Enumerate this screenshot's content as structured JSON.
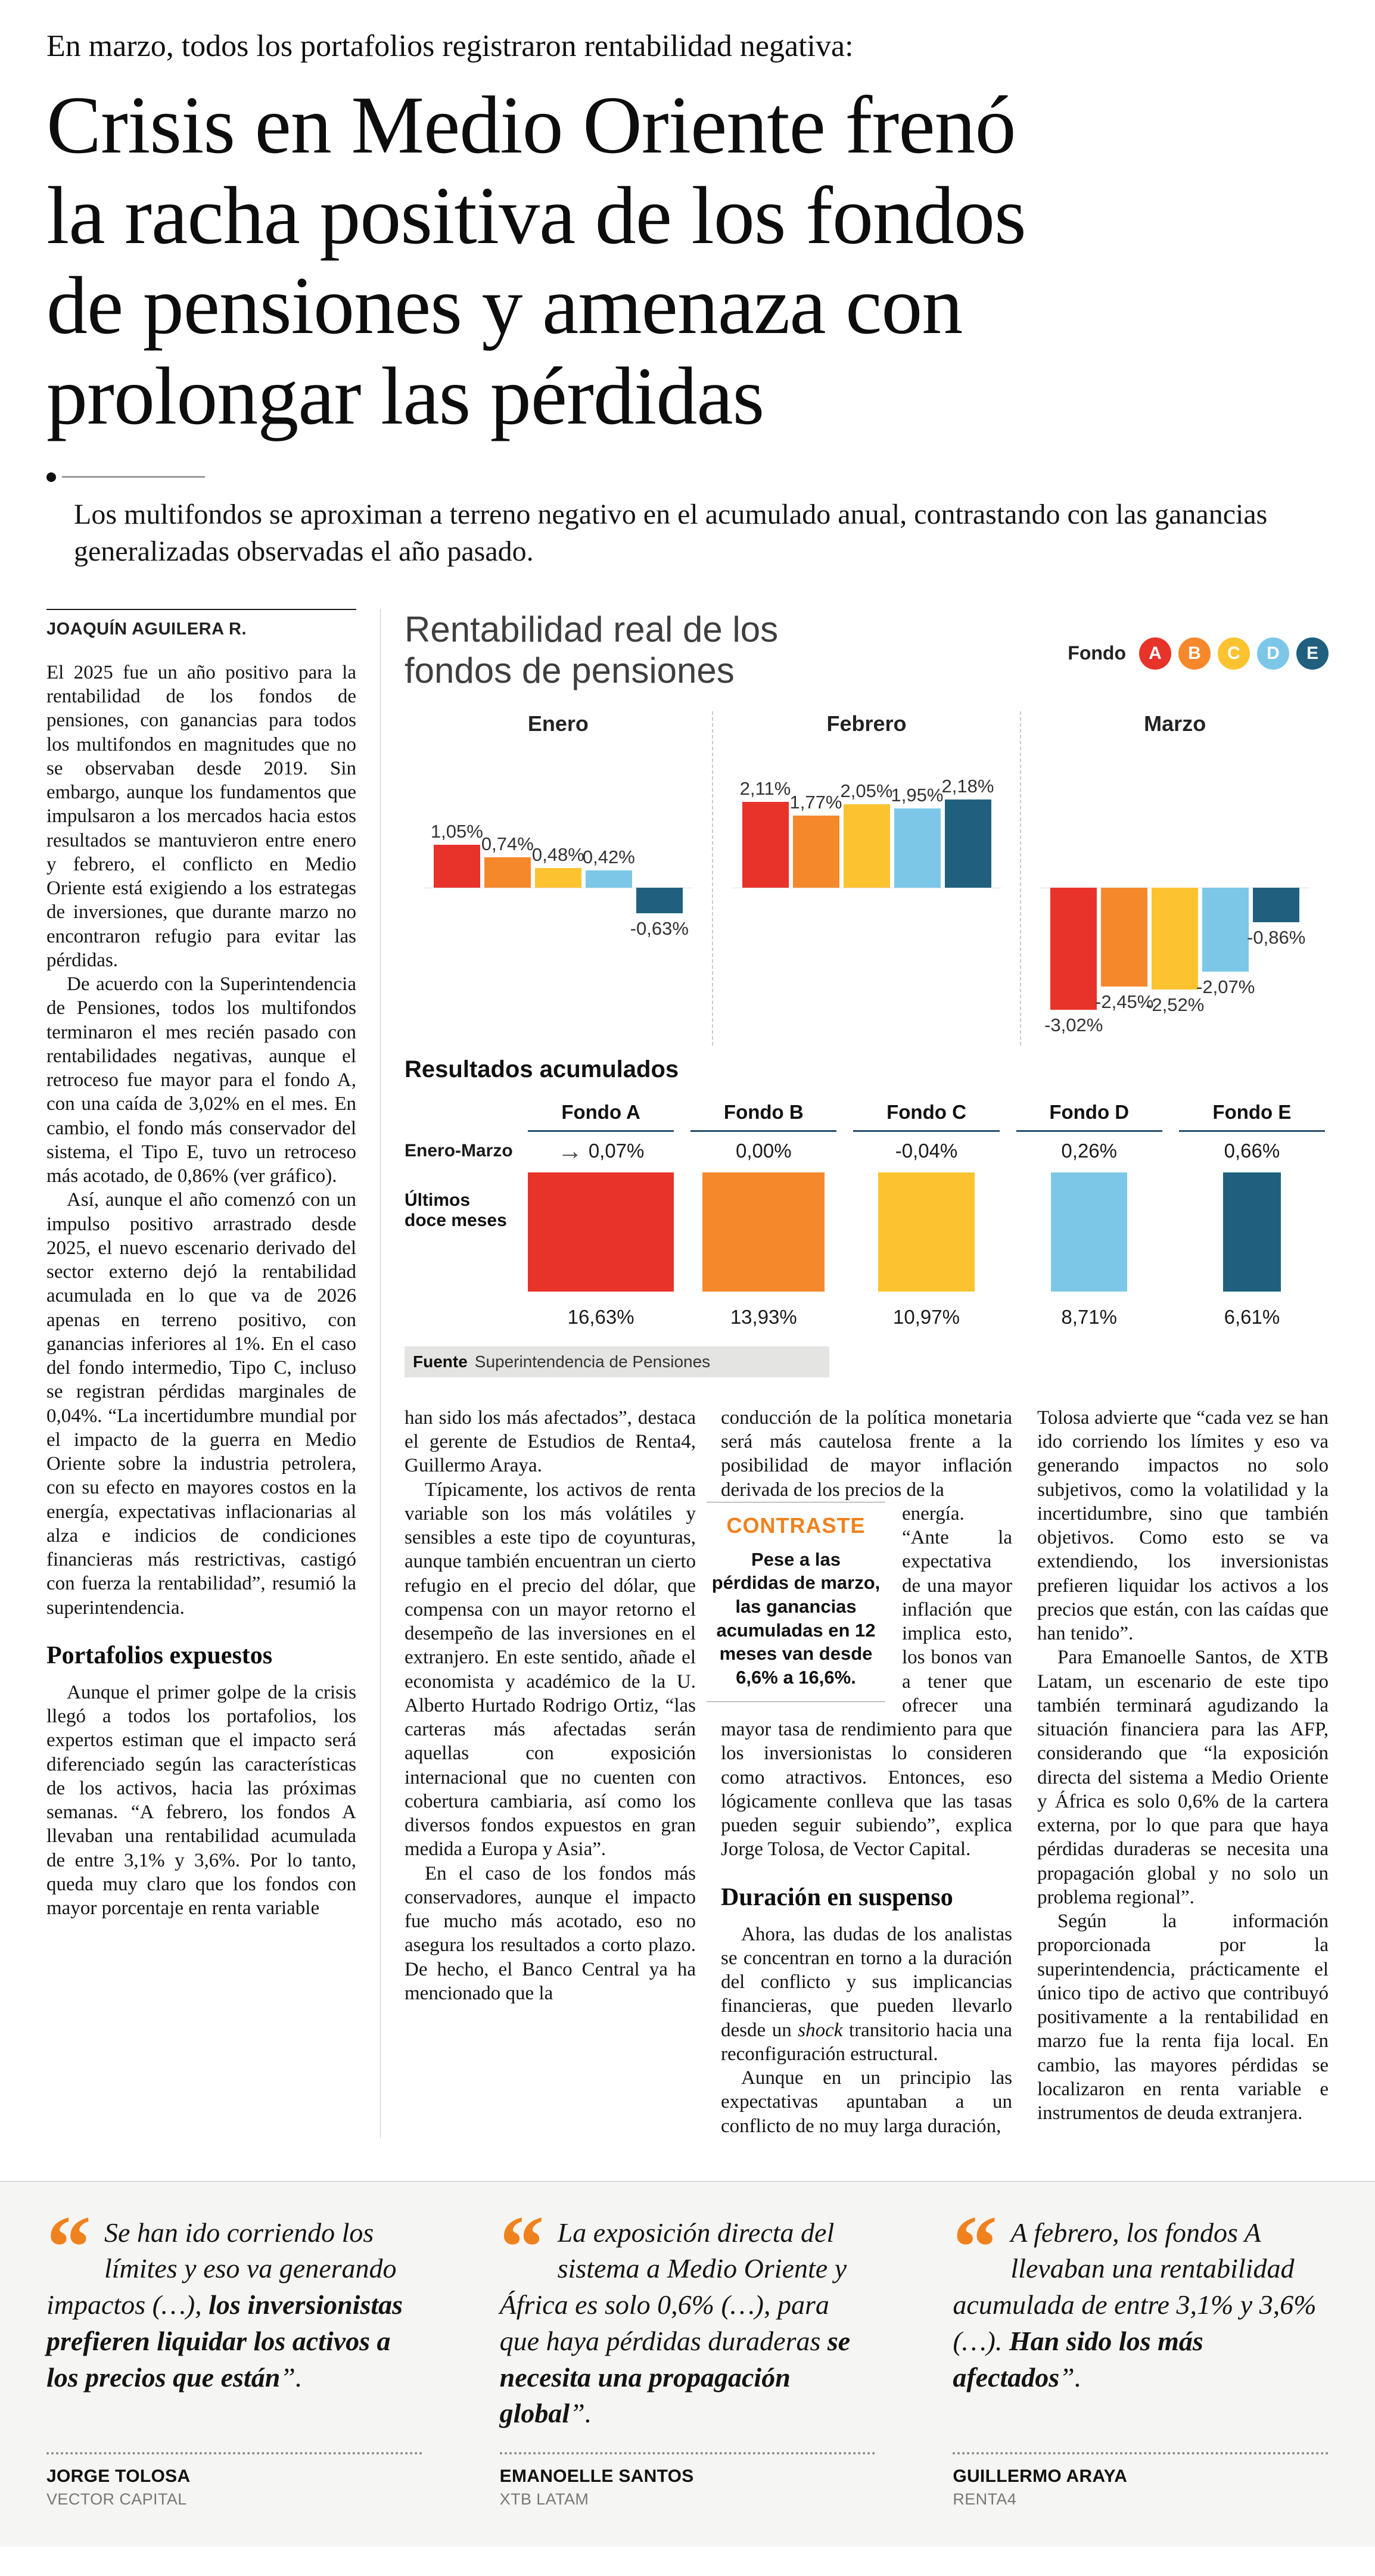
{
  "kicker": "En marzo, todos los portafolios registraron rentabilidad negativa:",
  "headline_lines": [
    "Crisis en Medio Oriente frenó",
    "la racha positiva de los fondos",
    "de pensiones y amenaza con",
    "prolongar las pérdidas"
  ],
  "deck": "Los multifondos se aproximan a terreno negativo en el acumulado anual, contrastando con las ganancias generalizadas observadas el año pasado.",
  "byline": "JOAQUÍN AGUILERA R.",
  "contraste": {
    "label": "CONTRASTE",
    "text": "Pese a las pérdidas de marzo, las ganancias acumuladas en 12 meses van desde 6,6% a 16,6%."
  },
  "article": {
    "columns": [
      {
        "id": "col1",
        "items": [
          {
            "type": "p",
            "indent": false,
            "text": "El 2025 fue un año positivo para la rentabilidad de los fondos de pensiones, con ganancias para todos los multifondos en magnitudes que no se observaban desde 2019. Sin embargo, aunque los fundamentos que impulsaron a los mercados hacia estos resultados se mantuvieron entre enero y febrero, el conflicto en Medio Oriente está exigiendo a los estrategas de inversiones, que durante marzo no encontraron refugio para evitar las pérdidas."
          },
          {
            "type": "p",
            "indent": true,
            "text": "De acuerdo con la Superintendencia de Pensiones, todos los multifondos terminaron el mes recién pasado con rentabilidades negativas, aunque el retroceso fue mayor para el fondo A, con una caída de 3,02% en el mes. En cambio, el fondo más conservador del sistema, el Tipo E, tuvo un retroceso más acotado, de 0,86% (ver gráfico)."
          },
          {
            "type": "p",
            "indent": true,
            "text": "Así, aunque el año comenzó con un impulso positivo arrastrado desde 2025, el nuevo escenario derivado del sector externo dejó la rentabilidad acumulada en lo que va de 2026 apenas en terreno positivo, con ganancias inferiores al 1%. En el caso del fondo intermedio, Tipo C, incluso se registran pérdidas marginales de 0,04%. “La incertidumbre mundial por el impacto de la guerra en Medio Oriente sobre la industria petrolera, con su efecto en mayores costos en la energía, expectativas inflacionarias al alza e indicios de condiciones financieras más restrictivas, castigó con fuerza la rentabilidad”, resumió la superintendencia."
          },
          {
            "type": "h2",
            "text": "Portafolios expuestos"
          },
          {
            "type": "p",
            "indent": true,
            "text": "Aunque el primer golpe de la crisis llegó a todos los portafolios, los expertos estiman que el impacto será diferenciado según las características de los activos, hacia las próximas semanas. “A febrero, los fondos A llevaban una rentabilidad acumulada de entre 3,1% y 3,6%. Por lo tanto, queda muy claro que los fondos con mayor porcentaje en renta variable"
          }
        ]
      },
      {
        "id": "col2",
        "items": [
          {
            "type": "p",
            "indent": false,
            "text": "han sido los más afectados”, destaca el gerente de Estudios de Renta4, Guillermo Araya."
          },
          {
            "type": "p",
            "indent": true,
            "text": "Típicamente, los activos de renta variable son los más volátiles y sensibles a este tipo de coyunturas, aunque también encuentran un cierto refugio en el precio del dólar, que compensa con un mayor retorno el desempeño de las inversiones en el extranjero. En este sentido, añade el economista y académico de la U. Alberto Hurtado Rodrigo Ortiz, “las carteras más afectadas serán aquellas con exposición internacional que no cuenten con cobertura cambiaria, así como los diversos fondos expuestos en gran medida a Europa y Asia”."
          },
          {
            "type": "p",
            "indent": true,
            "text": "En el caso de los fondos más conservadores, aunque el impacto fue mucho más acotado, eso no asegura los resultados a corto plazo. De hecho, el Banco Central ya ha mencionado que la"
          }
        ]
      },
      {
        "id": "col3",
        "items": [
          {
            "type": "p",
            "indent": false,
            "text": "conducción de la política monetaria será más cautelosa frente a la posibilidad de mayor inflación derivada de los precios de la"
          },
          {
            "type": "contraste"
          },
          {
            "type": "p",
            "indent": false,
            "text": "energía. “Ante la expectativa de una mayor inflación que implica esto, los bonos van a tener que ofrecer una mayor tasa de rendimiento para que los inversionistas lo consideren como atractivos. Entonces, eso lógicamente conlleva que las tasas pueden seguir subiendo”, explica Jorge Tolosa, de Vector Capital."
          },
          {
            "type": "h2",
            "text": "Duración en suspenso"
          },
          {
            "type": "p",
            "indent": true,
            "text": [
              {
                "t": "Ahora, las dudas de los analistas se concentran en torno a la duración del conflicto y sus implicancias financieras, que pueden llevarlo desde un "
              },
              {
                "t": "shock",
                "i": true
              },
              {
                "t": " transitorio hacia una reconfiguración estructural."
              }
            ]
          },
          {
            "type": "p",
            "indent": true,
            "text": "Aunque en un principio las expectativas apuntaban a un conflicto de no muy larga duración,"
          }
        ]
      },
      {
        "id": "col4",
        "items": [
          {
            "type": "p",
            "indent": false,
            "text": "Tolosa advierte que “cada vez se han ido corriendo los límites y eso va generando impactos no solo subjetivos, como la volatilidad y la incertidumbre, sino que también objetivos. Como esto se va extendiendo, los inversionistas prefieren liquidar los activos a los precios que están, con las caídas que han tenido”."
          },
          {
            "type": "p",
            "indent": true,
            "text": "Para Emanoelle Santos, de XTB Latam, un escenario de este tipo también terminará agudizando la situación financiera para las AFP, considerando que “la exposición directa del sistema a Medio Oriente y África es solo 0,6% de la cartera externa, por lo que para que haya pérdidas duraderas se necesita una propagación global y no solo un problema regional”."
          },
          {
            "type": "p",
            "indent": true,
            "text": "Según la información proporcionada por la superintendencia, prácticamente el único tipo de activo que contribuyó positivamente a la rentabilidad en marzo fue la renta fija local. En cambio, las mayores pérdidas se localizaron en renta variable e instrumentos de deuda extranjera."
          }
        ]
      }
    ]
  },
  "chart_data": {
    "type": "bar",
    "title": "Rentabilidad real de los fondos de pensiones",
    "legend_label": "Fondo",
    "unit": "%",
    "funds": [
      {
        "id": "A",
        "color": "#e8332a"
      },
      {
        "id": "B",
        "color": "#f6882c"
      },
      {
        "id": "C",
        "color": "#fcc331"
      },
      {
        "id": "D",
        "color": "#7cc7e8"
      },
      {
        "id": "E",
        "color": "#20607e"
      }
    ],
    "monthly": {
      "months": [
        {
          "name": "Enero",
          "values": [
            1.05,
            0.74,
            0.48,
            0.42,
            -0.63
          ],
          "labels": [
            "1,05%",
            "0,74%",
            "0,48%",
            "0,42%",
            "-0,63%"
          ]
        },
        {
          "name": "Febrero",
          "values": [
            2.11,
            1.77,
            2.05,
            1.95,
            2.18
          ],
          "labels": [
            "2,11%",
            "1,77%",
            "2,05%",
            "1,95%",
            "2,18%"
          ]
        },
        {
          "name": "Marzo",
          "values": [
            -3.02,
            -2.45,
            -2.52,
            -2.07,
            -0.86
          ],
          "labels": [
            "-3,02%",
            "-2,45%",
            "-2,52%",
            "-2,07%",
            "-0,86%"
          ]
        }
      ]
    },
    "accumulated": {
      "header": "Resultados acumulados",
      "row_labels": {
        "first": "Enero-Marzo",
        "second": "Últimos doce meses"
      },
      "max_value": 16.63,
      "funds": [
        {
          "name": "Fondo A",
          "enero_marzo": "0,07%",
          "doce_meses": "16,63%",
          "doce_meses_value": 16.63
        },
        {
          "name": "Fondo B",
          "enero_marzo": "0,00%",
          "doce_meses": "13,93%",
          "doce_meses_value": 13.93
        },
        {
          "name": "Fondo C",
          "enero_marzo": "-0,04%",
          "doce_meses": "10,97%",
          "doce_meses_value": 10.97
        },
        {
          "name": "Fondo D",
          "enero_marzo": "0,26%",
          "doce_meses": "8,71%",
          "doce_meses_value": 8.71
        },
        {
          "name": "Fondo E",
          "enero_marzo": "0,66%",
          "doce_meses": "6,61%",
          "doce_meses_value": 6.61
        }
      ]
    },
    "source": {
      "label": "Fuente",
      "text": "Superintendencia de Pensiones"
    }
  },
  "quotes": [
    {
      "segments": [
        {
          "t": "Se han ido corriendo los límites y eso va generando impactos (…), "
        },
        {
          "t": "los inversionistas prefieren liquidar los activos a los precios que están",
          "b": true
        },
        {
          "t": "”."
        }
      ],
      "name": "JORGE TOLOSA",
      "org": "VECTOR CAPITAL"
    },
    {
      "segments": [
        {
          "t": "La exposición directa del sistema a Medio Oriente y África es solo 0,6% (…), para que haya pérdidas duraderas "
        },
        {
          "t": "se necesita una propagación global",
          "b": true
        },
        {
          "t": "”."
        }
      ],
      "name": "EMANOELLE SANTOS",
      "org": "XTB LATAM"
    },
    {
      "segments": [
        {
          "t": "A febrero, los fondos A llevaban una rentabilidad acumulada de entre 3,1% y 3,6% (…). "
        },
        {
          "t": "Han sido los más afectados",
          "b": true
        },
        {
          "t": "”."
        }
      ],
      "name": "GUILLERMO ARAYA",
      "org": "RENTA4"
    }
  ]
}
